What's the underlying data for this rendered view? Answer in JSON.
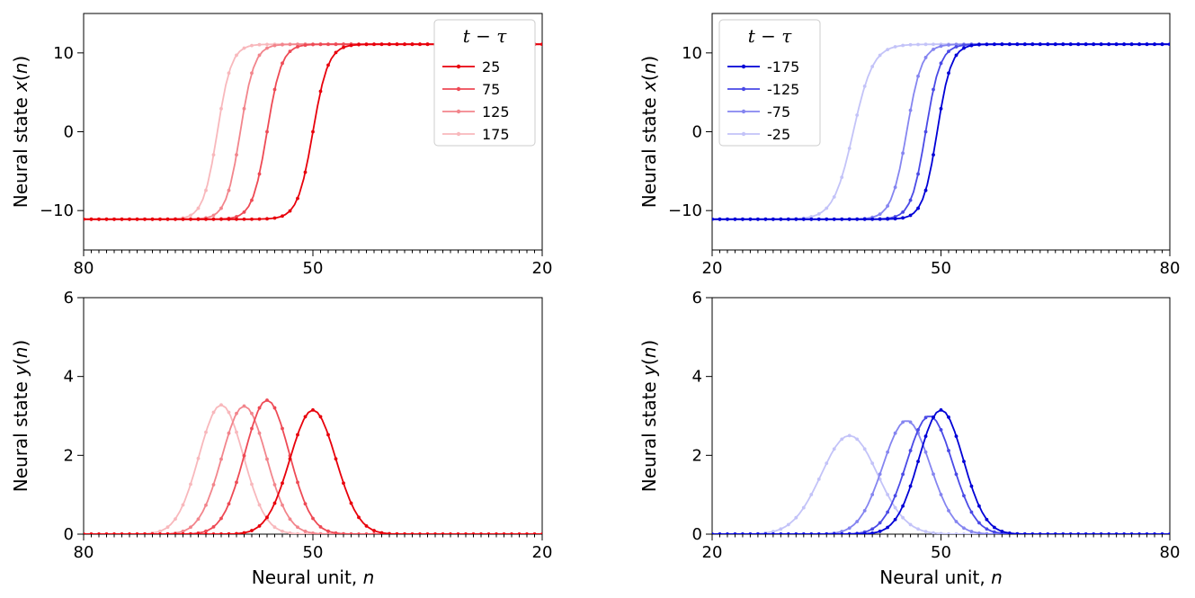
{
  "chart_data": [
    {
      "id": "top-left",
      "type": "line",
      "xlabel": "",
      "ylabel": "Neural state x(n)",
      "ylabel_parts": [
        "Neural state ",
        "x",
        "(",
        "n",
        ")"
      ],
      "xlim": [
        80,
        20
      ],
      "ylim": [
        -15,
        15
      ],
      "xticks": [
        80,
        50,
        20
      ],
      "xtick_labels": [
        "80",
        "50",
        "20"
      ],
      "yticks": [
        10,
        0,
        -10
      ],
      "ytick_labels": [
        "10",
        "0",
        "−10"
      ],
      "legend": {
        "title": "t − τ",
        "position": "top-right"
      },
      "curve": "sigmoid_down",
      "series": [
        {
          "name": "25",
          "color": "#e8000b",
          "center": 50,
          "scale": 2.0
        },
        {
          "name": "75",
          "color": "#ee4a55",
          "center": 56,
          "scale": 1.9
        },
        {
          "name": "125",
          "color": "#f2858c",
          "center": 59.5,
          "scale": 1.85
        },
        {
          "name": "175",
          "color": "#f8b8bc",
          "center": 62.5,
          "scale": 1.85
        }
      ]
    },
    {
      "id": "top-right",
      "type": "line",
      "xlabel": "",
      "ylabel": "Neural state x(n)",
      "ylabel_parts": [
        "Neural state ",
        "x",
        "(",
        "n",
        ")"
      ],
      "xlim": [
        20,
        80
      ],
      "ylim": [
        -15,
        15
      ],
      "xticks": [
        20,
        50,
        80
      ],
      "xtick_labels": [
        "20",
        "50",
        "80"
      ],
      "yticks": [
        10,
        0,
        -10
      ],
      "ytick_labels": [
        "10",
        "0",
        "−10"
      ],
      "legend": {
        "title": "t − τ",
        "position": "top-left"
      },
      "curve": "sigmoid_up",
      "series": [
        {
          "name": "-175",
          "color": "#0000d6",
          "center": 49.5,
          "scale": 1.85
        },
        {
          "name": "-125",
          "color": "#4a4ae6",
          "center": 48,
          "scale": 1.9
        },
        {
          "name": "-75",
          "color": "#8585f0",
          "center": 45.5,
          "scale": 2.0
        },
        {
          "name": "-25",
          "color": "#c3c3f8",
          "center": 38.5,
          "scale": 2.6
        }
      ]
    },
    {
      "id": "bottom-left",
      "type": "line",
      "xlabel": "Neural unit, n",
      "xlabel_parts": [
        "Neural unit, ",
        "n"
      ],
      "ylabel": "Neural state y(n)",
      "ylabel_parts": [
        "Neural state ",
        "y",
        "(",
        "n",
        ")"
      ],
      "xlim": [
        80,
        20
      ],
      "ylim": [
        0,
        6
      ],
      "xticks": [
        80,
        50,
        20
      ],
      "xtick_labels": [
        "80",
        "50",
        "20"
      ],
      "yticks": [
        0,
        2,
        4,
        6
      ],
      "ytick_labels": [
        "0",
        "2",
        "4",
        "6"
      ],
      "curve": "bump",
      "series": [
        {
          "name": "25",
          "color": "#e8000b",
          "center": 50,
          "peak": 3.15,
          "width": 3.0
        },
        {
          "name": "75",
          "color": "#ee4a55",
          "center": 56,
          "peak": 3.4,
          "width": 2.9
        },
        {
          "name": "125",
          "color": "#f2858c",
          "center": 59,
          "peak": 3.25,
          "width": 2.9
        },
        {
          "name": "175",
          "color": "#f8b8bc",
          "center": 62,
          "peak": 3.28,
          "width": 2.9
        }
      ]
    },
    {
      "id": "bottom-right",
      "type": "line",
      "xlabel": "Neural unit, n",
      "xlabel_parts": [
        "Neural unit, ",
        "n"
      ],
      "ylabel": "Neural state y(n)",
      "ylabel_parts": [
        "Neural state ",
        "y",
        "(",
        "n",
        ")"
      ],
      "xlim": [
        20,
        80
      ],
      "ylim": [
        0,
        6
      ],
      "xticks": [
        20,
        50,
        80
      ],
      "xtick_labels": [
        "20",
        "50",
        "80"
      ],
      "yticks": [
        0,
        2,
        4,
        6
      ],
      "ytick_labels": [
        "0",
        "2",
        "4",
        "6"
      ],
      "curve": "bump",
      "series": [
        {
          "name": "-175",
          "color": "#0000d6",
          "center": 50,
          "peak": 3.15,
          "width": 2.9
        },
        {
          "name": "-125",
          "color": "#4a4ae6",
          "center": 48.5,
          "peak": 3.0,
          "width": 3.0
        },
        {
          "name": "-75",
          "color": "#8585f0",
          "center": 45.5,
          "peak": 2.88,
          "width": 3.1
        },
        {
          "name": "-25",
          "color": "#c3c3f8",
          "center": 38,
          "peak": 2.5,
          "width": 3.7
        }
      ]
    }
  ]
}
